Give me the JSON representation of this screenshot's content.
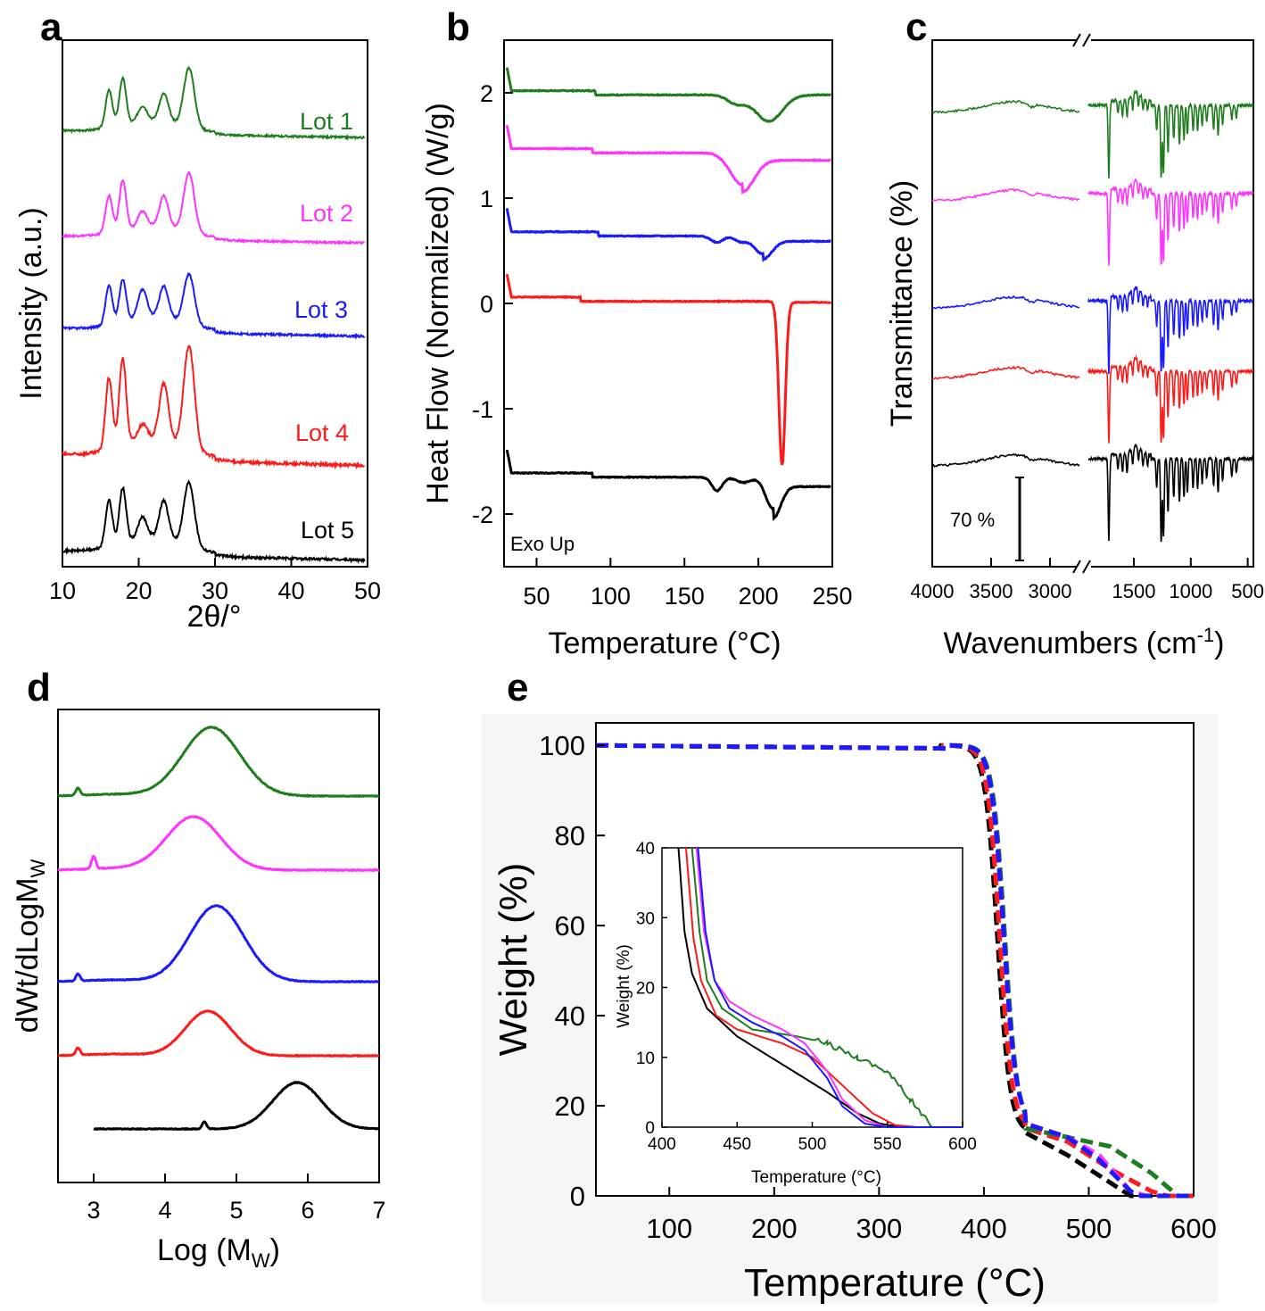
{
  "panels": {
    "a": {
      "label": "a"
    },
    "b": {
      "label": "b"
    },
    "c": {
      "label": "c"
    },
    "d": {
      "label": "d"
    },
    "e": {
      "label": "e"
    }
  },
  "chart_data": [
    {
      "panel": "a",
      "type": "line",
      "xlabel": "2θ/°",
      "ylabel": "Intensity (a.u.)",
      "xlim": [
        10,
        50
      ],
      "xticks": [
        "10",
        "20",
        "30",
        "40",
        "50"
      ],
      "y_ticks_shown": false,
      "peaks_2theta": [
        16.1,
        17.9,
        20.5,
        23.3,
        26.6
      ],
      "series": [
        {
          "name": "Lot 1",
          "color": "#1e7d1e",
          "peak_heights": [
            0.6,
            0.75,
            0.25,
            0.45,
            0.95
          ]
        },
        {
          "name": "Lot 2",
          "color": "#ff33ff",
          "peak_heights": [
            0.6,
            0.8,
            0.25,
            0.5,
            0.95
          ]
        },
        {
          "name": "Lot 3",
          "color": "#1a1aff",
          "peak_heights": [
            0.55,
            0.6,
            0.4,
            0.45,
            0.7
          ]
        },
        {
          "name": "Lot 4",
          "color": "#ff1a1a",
          "peak_heights": [
            0.7,
            0.85,
            0.15,
            0.55,
            1.0
          ]
        },
        {
          "name": "Lot 5",
          "color": "#000000",
          "peak_heights": [
            0.55,
            0.65,
            0.25,
            0.45,
            0.75
          ]
        }
      ]
    },
    {
      "panel": "b",
      "type": "line",
      "xlabel": "Temperature (°C)",
      "ylabel": "Heat Flow (Normalized) (W/g)",
      "xlim": [
        28,
        250
      ],
      "ylim": [
        -2.5,
        2.5
      ],
      "xticks": [
        "50",
        "100",
        "150",
        "200",
        "250"
      ],
      "yticks": [
        "-2",
        "-1",
        "0",
        "1",
        "2"
      ],
      "annotation": "Exo Up",
      "series": [
        {
          "color": "#1e7d1e",
          "baseline": 2.0,
          "end": 1.98,
          "step_at": 90,
          "dip_center": 207,
          "dip_depth": 0.25
        },
        {
          "color": "#ff33ff",
          "baseline": 1.45,
          "end": 1.36,
          "step_at": 88,
          "dip_center": 189,
          "dip_depth": 0.3
        },
        {
          "color": "#1a1aff",
          "baseline": 0.66,
          "end": 0.59,
          "step_at": 92,
          "dip_center": 203,
          "dip_depth": 0.17
        },
        {
          "color": "#ff1a1a",
          "baseline": 0.04,
          "end": 0.01,
          "step_at": 80,
          "dip_center": 216,
          "dip_depth": 1.55
        },
        {
          "color": "#000000",
          "baseline": -1.63,
          "end": -1.74,
          "step_at": 88,
          "dip_center": 210,
          "dip_depth": 0.3
        }
      ]
    },
    {
      "panel": "c",
      "type": "line",
      "xlabel": "Wavenumbers (cm",
      "xlabel_sup": "-1",
      "ylabel": "Transmittance (%)",
      "xticks": [
        "4000",
        "3500",
        "3000",
        "1500",
        "1000",
        "500"
      ],
      "scale_bar": "70 %",
      "axis_break": true,
      "series": [
        {
          "color": "#1e7d1e"
        },
        {
          "color": "#ff33ff"
        },
        {
          "color": "#1a1aff"
        },
        {
          "color": "#ff1a1a"
        },
        {
          "color": "#000000"
        }
      ]
    },
    {
      "panel": "d",
      "type": "line",
      "xlabel": "Log (M",
      "xlabel_sub": "W",
      "xlabel_end": ")",
      "ylabel": "dWt/dLogM",
      "ylabel_sub": "W",
      "xlim": [
        2.5,
        7
      ],
      "xticks": [
        "3",
        "4",
        "5",
        "6",
        "7"
      ],
      "series": [
        {
          "color": "#1e7d1e",
          "peak_logMw": 4.65,
          "spike_at": 2.78
        },
        {
          "color": "#ff33ff",
          "peak_logMw": 4.4,
          "spike_at": 3.0
        },
        {
          "color": "#1a1aff",
          "peak_logMw": 4.72,
          "spike_at": 2.78
        },
        {
          "color": "#ff1a1a",
          "peak_logMw": 4.6,
          "spike_at": 2.78
        },
        {
          "color": "#000000",
          "peak_logMw": 5.85,
          "spike_at": 4.55
        }
      ]
    },
    {
      "panel": "e",
      "type": "line",
      "xlabel": "Temperature (°C)",
      "ylabel": "Weight (%)",
      "xlim": [
        30,
        600
      ],
      "ylim": [
        0,
        105
      ],
      "xticks": [
        "100",
        "200",
        "300",
        "400",
        "500",
        "600"
      ],
      "yticks": [
        "0",
        "20",
        "40",
        "60",
        "80",
        "100"
      ],
      "series": [
        {
          "color": "#000000",
          "onset": 398
        },
        {
          "color": "#ff1a1a",
          "onset": 400
        },
        {
          "color": "#1e7d1e",
          "onset": 405
        },
        {
          "color": "#ff33ff",
          "onset": 404
        },
        {
          "color": "#1a1aff",
          "onset": 404
        }
      ],
      "inset": {
        "xlabel": "Temperature (°C)",
        "ylabel": "Weight (%)",
        "xlim": [
          400,
          600
        ],
        "ylim": [
          0,
          40
        ],
        "xticks": [
          "400",
          "450",
          "500",
          "550",
          "600"
        ],
        "yticks": [
          "0",
          "10",
          "20",
          "30",
          "40"
        ]
      }
    }
  ]
}
